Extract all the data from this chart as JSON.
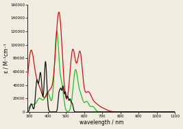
{
  "xlabel": "wavelength / nm",
  "ylabel": "ε / M⁻¹cm⁻¹",
  "xlim": [
    290,
    1100
  ],
  "ylim": [
    0,
    160000
  ],
  "yticks": [
    0,
    20000,
    40000,
    60000,
    80000,
    100000,
    120000,
    140000,
    160000
  ],
  "xticks": [
    300,
    400,
    500,
    600,
    700,
    800,
    900,
    1000,
    1100
  ],
  "background_color": "#f0ece0",
  "black_color": "#111111",
  "green_color": "#22bb22",
  "red_color": "#cc1111",
  "line_width": 0.9
}
